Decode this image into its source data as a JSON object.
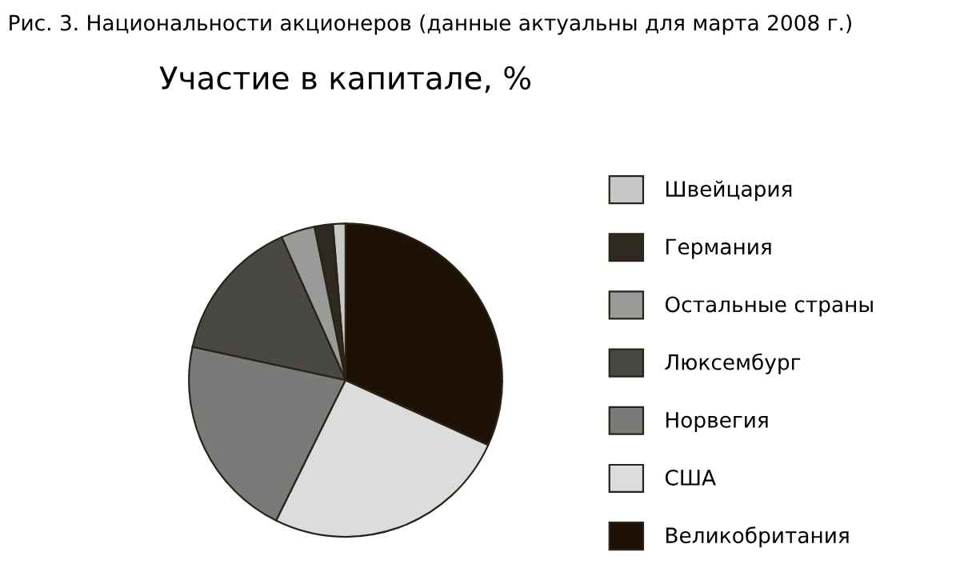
{
  "chart_data": {
    "type": "pie",
    "title": "Рис. 3. Национальности акционеров (данные актуальны для марта 2008 г.)",
    "subtitle": "Участие в капитале, %",
    "categories": [
      "Швейцария",
      "Германия",
      "Остальные страны",
      "Люксембург",
      "Норвегия",
      "США",
      "Великобритания"
    ],
    "values": [
      1.3,
      1.9,
      3.5,
      14.9,
      21.1,
      25.5,
      31.8
    ],
    "colors": [
      "#c8c8c8",
      "#2e2a22",
      "#9a9a98",
      "#4a4843",
      "#7a7a78",
      "#dcdcdc",
      "#1e1204"
    ],
    "legend": "right"
  }
}
